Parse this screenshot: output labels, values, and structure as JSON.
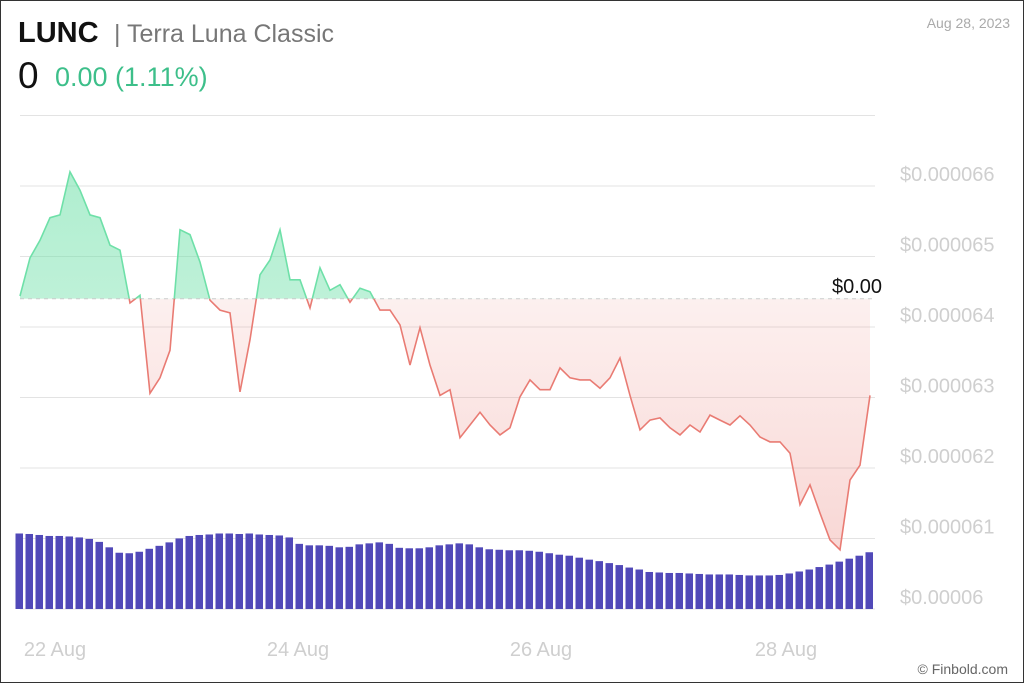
{
  "chart_data": {
    "type": "line",
    "title": "LUNC",
    "subtitle": "| Terra Luna Classic",
    "price": "0",
    "change": "0.00 (1.11%)",
    "date": "Aug 28, 2023",
    "source": "© Finbold.com",
    "baseline": {
      "value": 6.44e-05,
      "label": "$0.00"
    },
    "xlim": [
      0,
      85
    ],
    "xticks": [
      {
        "value": 3.5,
        "label": "22 Aug"
      },
      {
        "value": 27.8,
        "label": "24 Aug"
      },
      {
        "value": 52.1,
        "label": "26 Aug"
      },
      {
        "value": 76.6,
        "label": "28 Aug"
      }
    ],
    "ylim": [
      6e-05,
      6.7e-05
    ],
    "yticks": [
      {
        "value": 6e-05,
        "label": "$0.00006"
      },
      {
        "value": 6.1e-05,
        "label": "$0.000061"
      },
      {
        "value": 6.2e-05,
        "label": "$0.000062"
      },
      {
        "value": 6.3e-05,
        "label": "$0.000063"
      },
      {
        "value": 6.4e-05,
        "label": "$0.000064"
      },
      {
        "value": 6.5e-05,
        "label": "$0.000065"
      },
      {
        "value": 6.6e-05,
        "label": "$0.000066"
      }
    ],
    "y2lim": [
      0,
      100
    ],
    "grid": true,
    "up_color": "#6ee0a8",
    "down_color": "#e97b73",
    "series": [
      {
        "name": "price",
        "values": [
          6.444e-05,
          6.498e-05,
          6.523e-05,
          6.555e-05,
          6.559e-05,
          6.62e-05,
          6.594e-05,
          6.559e-05,
          6.555e-05,
          6.516e-05,
          6.509e-05,
          6.434e-05,
          6.445e-05,
          6.306e-05,
          6.328e-05,
          6.367e-05,
          6.538e-05,
          6.531e-05,
          6.492e-05,
          6.438e-05,
          6.424e-05,
          6.42e-05,
          6.308e-05,
          6.382e-05,
          6.474e-05,
          6.495e-05,
          6.538e-05,
          6.467e-05,
          6.467e-05,
          6.427e-05,
          6.484e-05,
          6.452e-05,
          6.46e-05,
          6.435e-05,
          6.455e-05,
          6.45e-05,
          6.424e-05,
          6.424e-05,
          6.403e-05,
          6.346e-05,
          6.399e-05,
          6.346e-05,
          6.303e-05,
          6.311e-05,
          6.243e-05,
          6.261e-05,
          6.279e-05,
          6.261e-05,
          6.247e-05,
          6.257e-05,
          6.301e-05,
          6.325e-05,
          6.311e-05,
          6.311e-05,
          6.342e-05,
          6.328e-05,
          6.325e-05,
          6.325e-05,
          6.313e-05,
          6.328e-05,
          6.356e-05,
          6.303e-05,
          6.254e-05,
          6.268e-05,
          6.271e-05,
          6.257e-05,
          6.247e-05,
          6.261e-05,
          6.251e-05,
          6.275e-05,
          6.268e-05,
          6.261e-05,
          6.274e-05,
          6.261e-05,
          6.244e-05,
          6.237e-05,
          6.237e-05,
          6.221e-05,
          6.148e-05,
          6.176e-05,
          6.136e-05,
          6.098e-05,
          6.084e-05,
          6.183e-05,
          6.204e-05,
          6.303e-05
        ]
      },
      {
        "name": "volume",
        "axis": "y2",
        "color": "#5149b8",
        "values": [
          15.3,
          15.2,
          15,
          14.8,
          14.8,
          14.7,
          14.5,
          14.2,
          13.6,
          12.5,
          11.4,
          11.3,
          11.6,
          12.2,
          12.8,
          13.5,
          14.3,
          14.8,
          15,
          15.1,
          15.3,
          15.3,
          15.2,
          15.3,
          15.1,
          15,
          14.9,
          14.5,
          13.2,
          12.9,
          12.9,
          12.8,
          12.5,
          12.6,
          13.1,
          13.3,
          13.5,
          13.2,
          12.4,
          12.3,
          12.3,
          12.5,
          12.9,
          13.1,
          13.3,
          13.1,
          12.5,
          12.1,
          12,
          11.9,
          11.9,
          11.8,
          11.6,
          11.3,
          11,
          10.8,
          10.4,
          10,
          9.7,
          9.3,
          8.9,
          8.4,
          8,
          7.5,
          7.4,
          7.3,
          7.3,
          7.2,
          7.1,
          7,
          7,
          7,
          6.9,
          6.8,
          6.8,
          6.8,
          6.9,
          7.2,
          7.6,
          8,
          8.5,
          9,
          9.6,
          10.2,
          10.8,
          11.5
        ]
      }
    ]
  }
}
